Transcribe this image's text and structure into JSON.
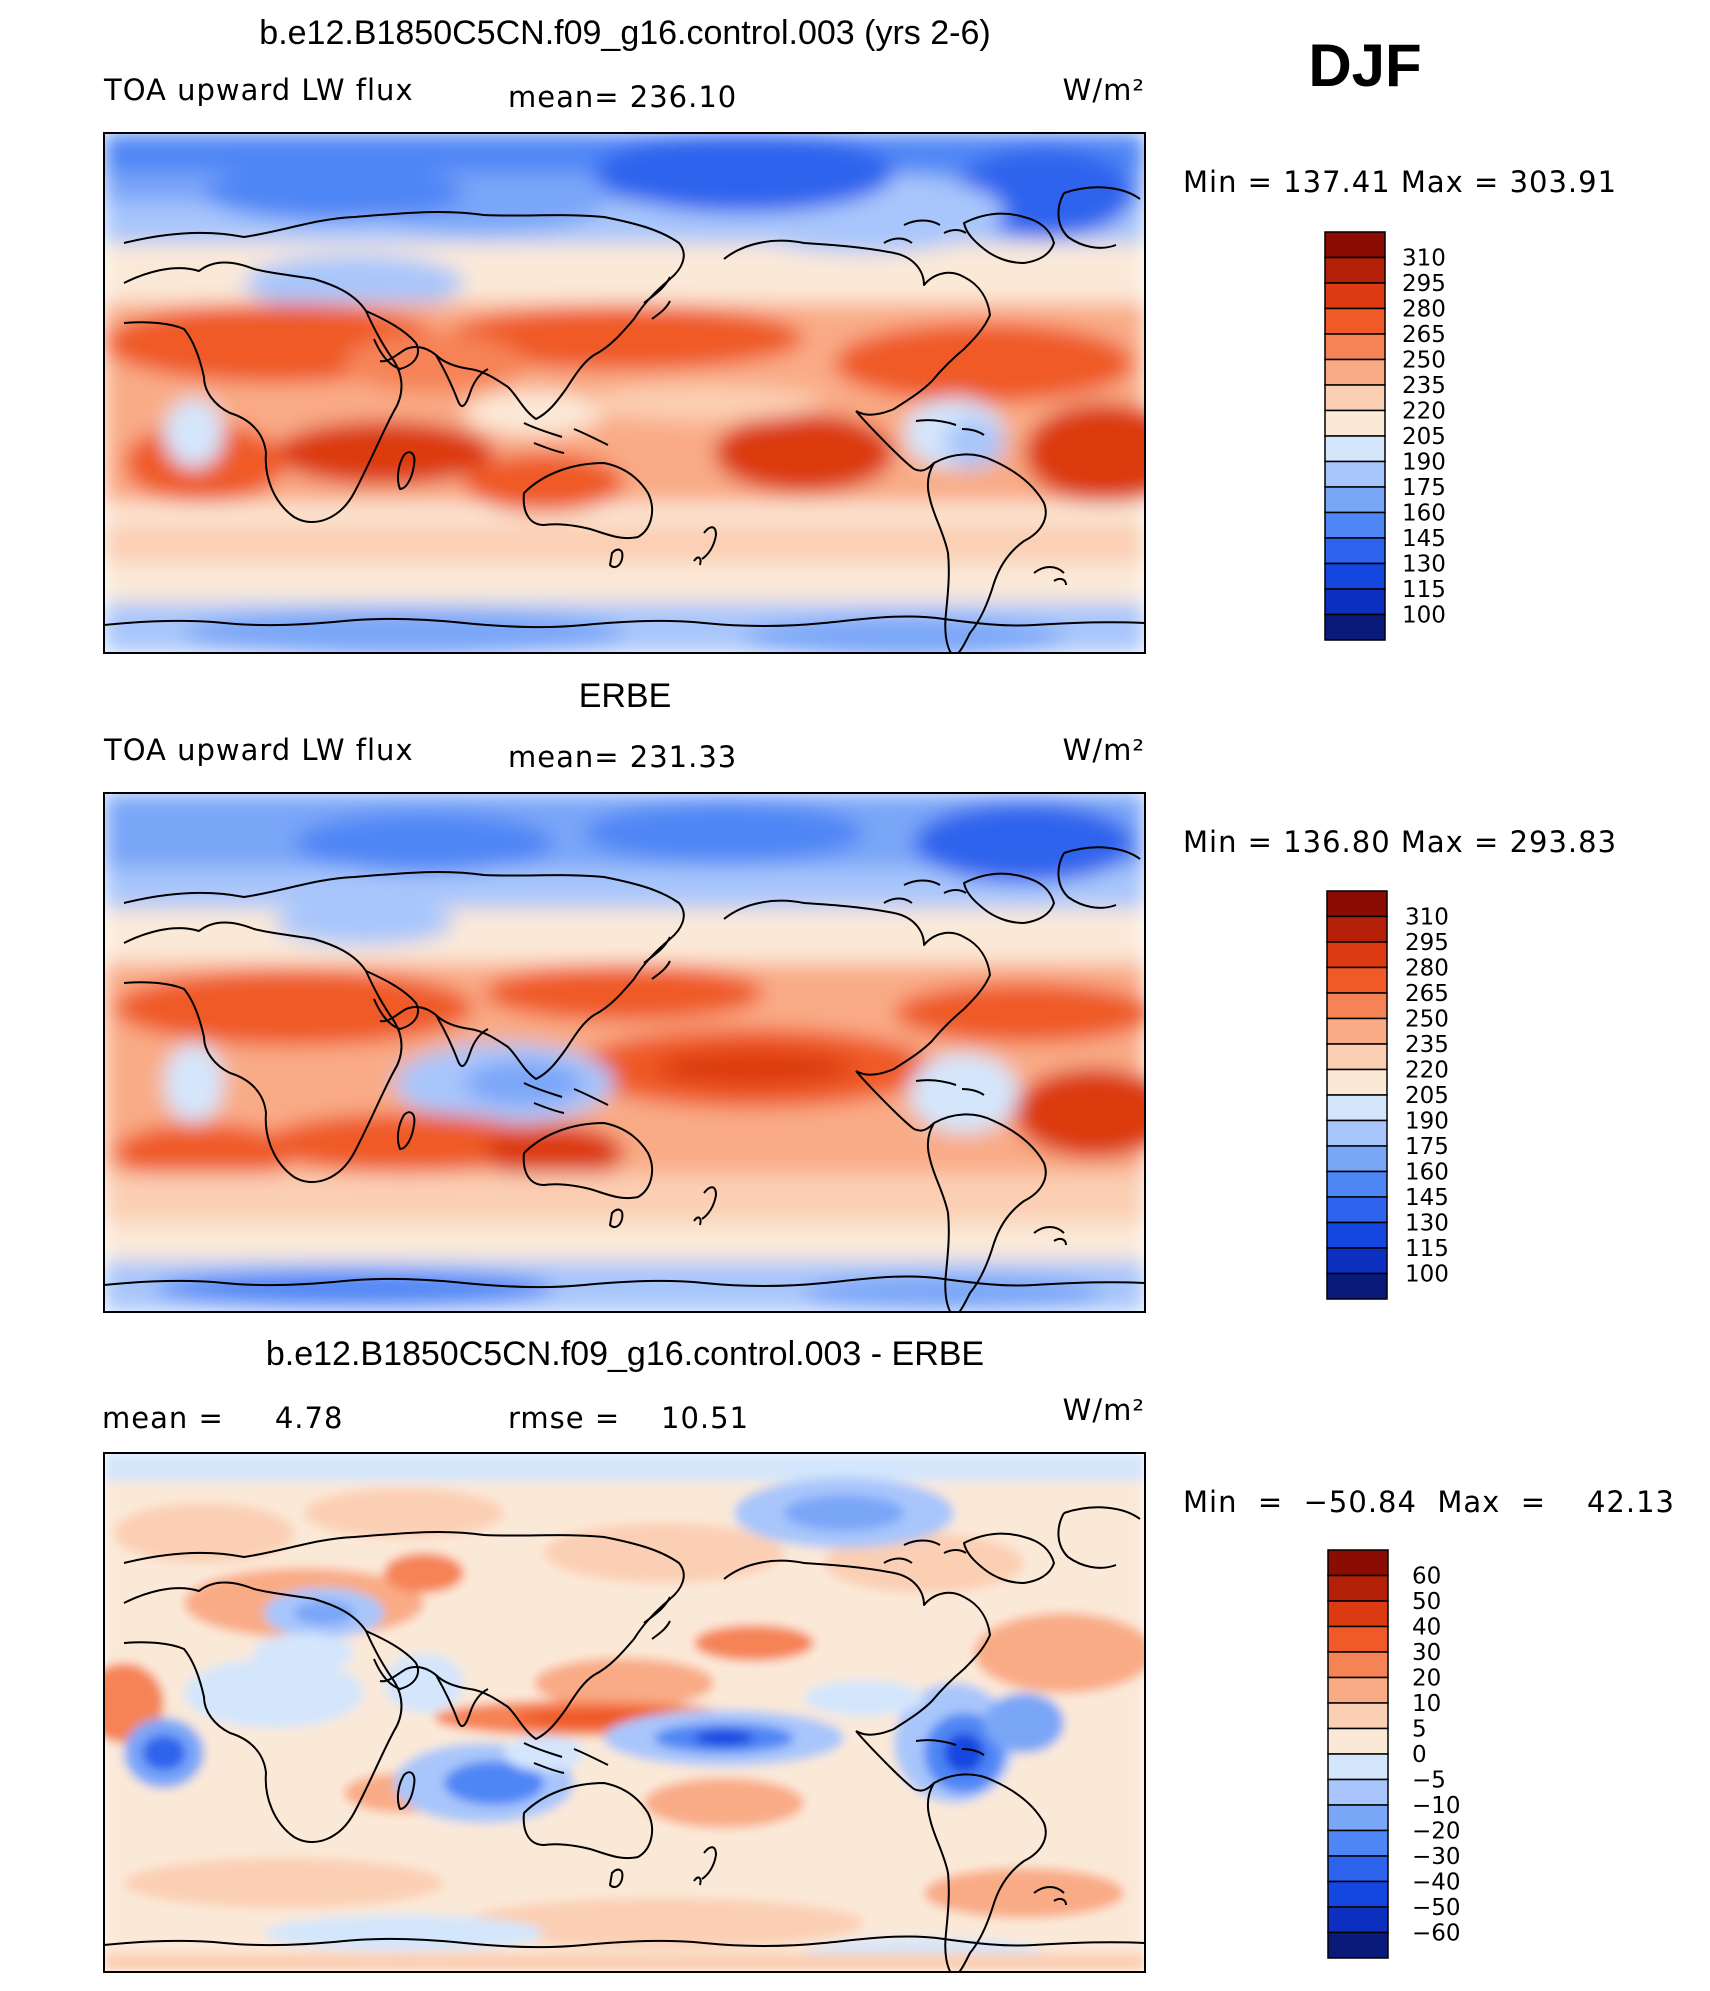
{
  "figure": {
    "season": "DJF",
    "panels": [
      {
        "id": "model",
        "title": "b.e12.B1850C5CN.f09_g16.control.003 (yrs 2-6)",
        "left_label": "TOA upward LW flux",
        "center_label": "mean= 236.10",
        "units": "W/m²",
        "stats": "Min  =  137.41  Max  =  303.91",
        "colorbar_labels": [
          "310",
          "295",
          "280",
          "265",
          "250",
          "235",
          "220",
          "205",
          "190",
          "175",
          "160",
          "145",
          "130",
          "115",
          "100"
        ]
      },
      {
        "id": "obs",
        "title": "ERBE",
        "left_label": "TOA upward LW flux",
        "center_label": "mean= 231.33",
        "units": "W/m²",
        "stats": "Min  =  136.80  Max  =  293.83",
        "colorbar_labels": [
          "310",
          "295",
          "280",
          "265",
          "250",
          "235",
          "220",
          "205",
          "190",
          "175",
          "160",
          "145",
          "130",
          "115",
          "100"
        ]
      },
      {
        "id": "diff",
        "title": "b.e12.B1850C5CN.f09_g16.control.003 - ERBE",
        "left_label": "mean =     4.78",
        "center_label": "rmse =    10.51",
        "units": "W/m²",
        "stats": "Min  =  −50.84  Max  =    42.13",
        "colorbar_labels": [
          "60",
          "50",
          "40",
          "30",
          "20",
          "10",
          "5",
          "0",
          "−5",
          "−10",
          "−20",
          "−30",
          "−40",
          "−50",
          "−60"
        ]
      }
    ]
  },
  "chart_data": [
    {
      "type": "heatmap",
      "title": "b.e12.B1850C5CN.f09_g16.control.003 (yrs 2-6)",
      "variable": "TOA upward LW flux",
      "units": "W/m²",
      "season": "DJF",
      "mean": 236.1,
      "min": 137.41,
      "max": 303.91,
      "contour_levels": [
        100,
        115,
        130,
        145,
        160,
        175,
        190,
        205,
        220,
        235,
        250,
        265,
        280,
        295,
        310
      ],
      "colors": [
        "#0a1a7a",
        "#0c2fc0",
        "#1446e0",
        "#2e63ee",
        "#4f86f5",
        "#7aa6f8",
        "#a8c6fb",
        "#d4e6fc",
        "#fbe9d8",
        "#fbcfb4",
        "#f9ab86",
        "#f68356",
        "#ef5a28",
        "#dc3a10",
        "#b42008",
        "#8a0c03"
      ]
    },
    {
      "type": "heatmap",
      "title": "ERBE",
      "variable": "TOA upward LW flux",
      "units": "W/m²",
      "season": "DJF",
      "mean": 231.33,
      "min": 136.8,
      "max": 293.83,
      "contour_levels": [
        100,
        115,
        130,
        145,
        160,
        175,
        190,
        205,
        220,
        235,
        250,
        265,
        280,
        295,
        310
      ],
      "colors": [
        "#0a1a7a",
        "#0c2fc0",
        "#1446e0",
        "#2e63ee",
        "#4f86f5",
        "#7aa6f8",
        "#a8c6fb",
        "#d4e6fc",
        "#fbe9d8",
        "#fbcfb4",
        "#f9ab86",
        "#f68356",
        "#ef5a28",
        "#dc3a10",
        "#b42008",
        "#8a0c03"
      ]
    },
    {
      "type": "heatmap",
      "title": "b.e12.B1850C5CN.f09_g16.control.003 - ERBE",
      "units": "W/m²",
      "season": "DJF",
      "mean": 4.78,
      "rmse": 10.51,
      "min": -50.84,
      "max": 42.13,
      "contour_levels": [
        -60,
        -50,
        -40,
        -30,
        -20,
        -10,
        -5,
        0,
        5,
        10,
        20,
        30,
        40,
        50,
        60
      ],
      "colors": [
        "#0a1a7a",
        "#0c2fc0",
        "#1446e0",
        "#2e63ee",
        "#4f86f5",
        "#7aa6f8",
        "#a8c6fb",
        "#d4e6fc",
        "#fbe9d8",
        "#fbcfb4",
        "#f9ab86",
        "#f68356",
        "#ef5a28",
        "#dc3a10",
        "#b42008",
        "#8a0c03"
      ]
    }
  ]
}
